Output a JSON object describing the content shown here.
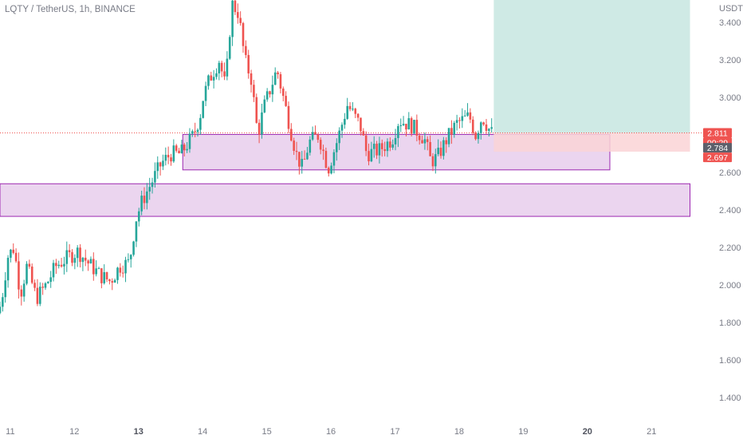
{
  "header": {
    "symbol": "LQTY / TetherUS, 1h, BINANCE"
  },
  "colors": {
    "up": "#26a69a",
    "down": "#ef5350",
    "zone_fill": "#e1bee7",
    "zone_border": "#9c27b0",
    "target_fill": "#cfeae5",
    "stop_fill": "#fad4d6",
    "axis_text": "#787b86",
    "price_tag_red": "#ef5350",
    "price_tag_dark": "#5d606b"
  },
  "chart_data": {
    "type": "candlestick",
    "title": "LQTY / TetherUS, 1h, BINANCE",
    "y_axis_unit": "USDT",
    "x_tick_labels": [
      "11",
      "12",
      "13",
      "14",
      "15",
      "16",
      "17",
      "18",
      "19",
      "20",
      "21"
    ],
    "x_tick_days": [
      11,
      12,
      13,
      14,
      15,
      16,
      17,
      18,
      19,
      20,
      21
    ],
    "bold_x_ticks": [
      "13",
      "20"
    ],
    "y_tick_labels": [
      "3.400",
      "3.200",
      "3.000",
      "2.600",
      "2.400",
      "2.200",
      "2.000",
      "1.800",
      "1.600",
      "1.400"
    ],
    "y_tick_values": [
      3.4,
      3.2,
      3.0,
      2.6,
      2.4,
      2.2,
      2.0,
      1.8,
      1.6,
      1.4
    ],
    "x_range_days": [
      10.84,
      21.78
    ],
    "y_range": [
      1.285,
      3.52
    ],
    "current_price": 2.811,
    "price_tags": [
      {
        "label": "2.811",
        "value": 2.811,
        "style": "red"
      },
      {
        "label": "00:29",
        "value": 2.76,
        "style": "red"
      },
      {
        "label": "2.784",
        "value": 2.732,
        "style": "dark"
      },
      {
        "label": "2.697",
        "value": 2.681,
        "style": "red"
      }
    ],
    "zones": [
      {
        "name": "upper",
        "from_day": 13.69,
        "to_day": 20.35,
        "low": 2.614,
        "high": 2.803
      },
      {
        "name": "lower",
        "from_day": 10.84,
        "to_day": 21.6,
        "low": 2.366,
        "high": 2.54
      }
    ],
    "long_position": {
      "from_day": 18.54,
      "to_day": 21.6,
      "entry": 2.811,
      "target": 3.52,
      "stop": 2.711
    },
    "price_path": [
      [
        10.84,
        1.85
      ],
      [
        10.9,
        1.9
      ],
      [
        11.0,
        2.15
      ],
      [
        11.1,
        2.2
      ],
      [
        11.2,
        1.95
      ],
      [
        11.3,
        2.1
      ],
      [
        11.45,
        1.93
      ],
      [
        11.6,
        2.0
      ],
      [
        11.75,
        2.1
      ],
      [
        11.95,
        2.15
      ],
      [
        12.1,
        2.18
      ],
      [
        12.25,
        2.12
      ],
      [
        12.45,
        2.05
      ],
      [
        12.6,
        2.02
      ],
      [
        12.75,
        2.1
      ],
      [
        12.9,
        2.12
      ],
      [
        13.0,
        2.35
      ],
      [
        13.1,
        2.45
      ],
      [
        13.25,
        2.55
      ],
      [
        13.4,
        2.65
      ],
      [
        13.55,
        2.7
      ],
      [
        13.7,
        2.7
      ],
      [
        13.9,
        2.8
      ],
      [
        14.0,
        2.9
      ],
      [
        14.05,
        3.0
      ],
      [
        14.15,
        3.1
      ],
      [
        14.3,
        3.2
      ],
      [
        14.4,
        3.05
      ],
      [
        14.45,
        3.3
      ],
      [
        14.5,
        3.5
      ],
      [
        14.6,
        3.45
      ],
      [
        14.7,
        3.2
      ],
      [
        14.8,
        3.1
      ],
      [
        14.9,
        2.8
      ],
      [
        15.0,
        2.95
      ],
      [
        15.1,
        3.05
      ],
      [
        15.2,
        3.15
      ],
      [
        15.3,
        3.0
      ],
      [
        15.4,
        2.85
      ],
      [
        15.5,
        2.7
      ],
      [
        15.6,
        2.62
      ],
      [
        15.7,
        2.76
      ],
      [
        15.85,
        2.8
      ],
      [
        16.0,
        2.62
      ],
      [
        16.15,
        2.78
      ],
      [
        16.3,
        2.96
      ],
      [
        16.5,
        2.85
      ],
      [
        16.6,
        2.7
      ],
      [
        16.8,
        2.72
      ],
      [
        17.0,
        2.78
      ],
      [
        17.1,
        2.88
      ],
      [
        17.3,
        2.85
      ],
      [
        17.5,
        2.78
      ],
      [
        17.6,
        2.66
      ],
      [
        17.7,
        2.68
      ],
      [
        17.85,
        2.78
      ],
      [
        18.0,
        2.86
      ],
      [
        18.2,
        2.9
      ],
      [
        18.3,
        2.8
      ],
      [
        18.4,
        2.9
      ],
      [
        18.54,
        2.811
      ]
    ]
  }
}
